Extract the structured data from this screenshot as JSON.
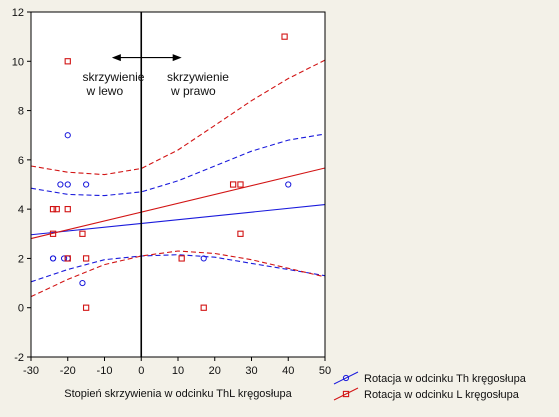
{
  "chart_data": {
    "type": "scatter",
    "title": "",
    "xlabel": "Stopień skrzywienia w odcinku ThL kręgosłupa",
    "ylabel": "",
    "xlim": [
      -30,
      50
    ],
    "ylim": [
      -2,
      12
    ],
    "x_ticks": [
      -30,
      -20,
      -10,
      0,
      10,
      20,
      30,
      40,
      50
    ],
    "y_ticks": [
      -2,
      0,
      2,
      4,
      6,
      8,
      10,
      12
    ],
    "grid": false,
    "legend_position": "bottom-right, outside plot",
    "vertical_reference_line_x": 0,
    "annotations": [
      {
        "text_lines": [
          "skrzywienie",
          "w lewo"
        ],
        "x": -16,
        "y": 10.1
      },
      {
        "text_lines": [
          "skrzywienie",
          "w prawo"
        ],
        "x": 7,
        "y": 10.1
      }
    ],
    "arrow": {
      "from_x": -8,
      "to_x": 11,
      "y": 10.15
    },
    "series": [
      {
        "name": "Rotacja w odcinku Th kręgosłupa",
        "color": "#1a1adc",
        "marker": "circle",
        "points": [
          [
            -20,
            7
          ],
          [
            -22,
            5
          ],
          [
            -20,
            5
          ],
          [
            -15,
            5
          ],
          [
            40,
            5
          ],
          [
            -24,
            2
          ],
          [
            -24,
            2
          ],
          [
            -20,
            2
          ],
          [
            -21,
            2
          ],
          [
            17,
            2
          ],
          [
            -16,
            1
          ]
        ],
        "fit_line": {
          "intercept": 3.42,
          "slope": 0.0153
        },
        "confidence_band": {
          "upper": [
            [
              -30,
              4.85
            ],
            [
              -20,
              4.6
            ],
            [
              -10,
              4.55
            ],
            [
              0,
              4.7
            ],
            [
              10,
              5.15
            ],
            [
              20,
              5.75
            ],
            [
              30,
              6.35
            ],
            [
              40,
              6.8
            ],
            [
              50,
              7.05
            ]
          ],
          "lower": [
            [
              -30,
              1.05
            ],
            [
              -20,
              1.55
            ],
            [
              -10,
              1.95
            ],
            [
              0,
              2.1
            ],
            [
              10,
              2.15
            ],
            [
              20,
              2.05
            ],
            [
              30,
              1.8
            ],
            [
              40,
              1.55
            ],
            [
              50,
              1.3
            ]
          ]
        }
      },
      {
        "name": "Rotacja w odcinku L kręgosłupa",
        "color": "#d21414",
        "marker": "square",
        "points": [
          [
            -20,
            10
          ],
          [
            39,
            11
          ],
          [
            25,
            5
          ],
          [
            27,
            5
          ],
          [
            -24,
            4
          ],
          [
            -23,
            4
          ],
          [
            -20,
            4
          ],
          [
            -24,
            3
          ],
          [
            -16,
            3
          ],
          [
            27,
            3
          ],
          [
            -20,
            2
          ],
          [
            -15,
            2
          ],
          [
            11,
            2
          ],
          [
            -15,
            0
          ],
          [
            17,
            0
          ]
        ],
        "fit_line": {
          "intercept": 3.88,
          "slope": 0.0358
        },
        "confidence_band": {
          "upper": [
            [
              -30,
              5.75
            ],
            [
              -20,
              5.5
            ],
            [
              -10,
              5.4
            ],
            [
              0,
              5.65
            ],
            [
              10,
              6.4
            ],
            [
              20,
              7.4
            ],
            [
              30,
              8.4
            ],
            [
              40,
              9.3
            ],
            [
              50,
              10.05
            ]
          ],
          "lower": [
            [
              -30,
              0.45
            ],
            [
              -20,
              1.15
            ],
            [
              -10,
              1.75
            ],
            [
              0,
              2.1
            ],
            [
              10,
              2.3
            ],
            [
              20,
              2.2
            ],
            [
              30,
              1.95
            ],
            [
              40,
              1.6
            ],
            [
              50,
              1.25
            ]
          ]
        }
      }
    ]
  }
}
